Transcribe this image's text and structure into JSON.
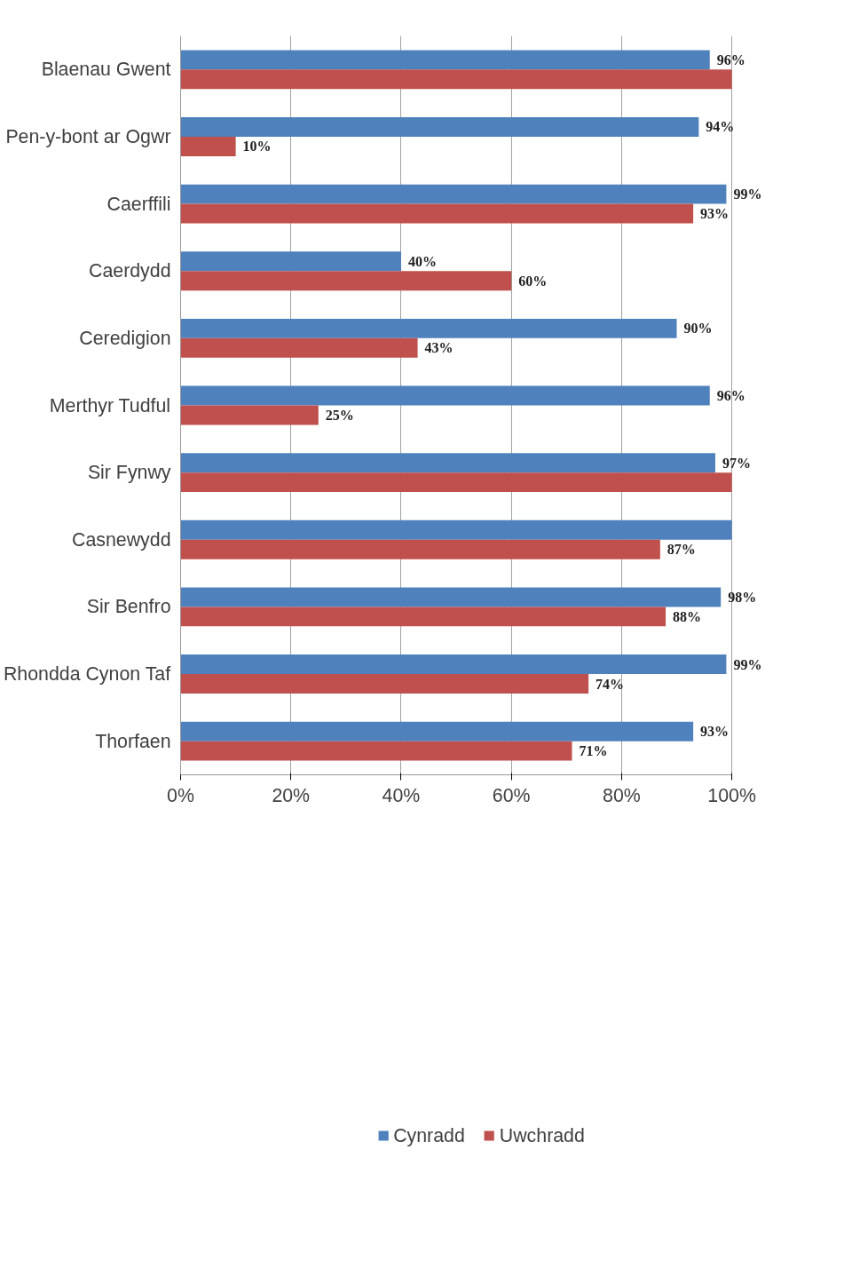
{
  "chart_data": {
    "type": "bar",
    "orientation": "horizontal",
    "categories": [
      "Blaenau Gwent",
      "Pen-y-bont ar Ogwr",
      "Caerffili",
      "Caerdydd",
      "Ceredigion",
      "Merthyr Tudful",
      "Sir Fynwy",
      "Casnewydd",
      "Sir Benfro",
      "Rhondda Cynon Taf",
      "Thorfaen"
    ],
    "series": [
      {
        "name": "Cynradd",
        "color": "#4f81bd",
        "values": [
          96,
          94,
          99,
          40,
          90,
          96,
          97,
          100,
          98,
          99,
          93
        ],
        "value_labels": [
          "96%",
          "94%",
          "99%",
          "40%",
          "90%",
          "96%",
          "97%",
          null,
          "98%",
          "99%",
          "93%"
        ]
      },
      {
        "name": "Uwchradd",
        "color": "#c0504d",
        "values": [
          100,
          10,
          93,
          60,
          43,
          25,
          100,
          87,
          88,
          74,
          71
        ],
        "value_labels": [
          null,
          "10%",
          "93%",
          "60%",
          "43%",
          "25%",
          null,
          "87%",
          "88%",
          "74%",
          "71%"
        ]
      }
    ],
    "xlim": [
      0,
      100
    ],
    "xticks": [
      {
        "value": 0,
        "label": "0%"
      },
      {
        "value": 20,
        "label": "20%"
      },
      {
        "value": 40,
        "label": "40%"
      },
      {
        "value": 60,
        "label": "60%"
      },
      {
        "value": 80,
        "label": "80%"
      },
      {
        "value": 100,
        "label": "100%"
      }
    ],
    "grid": "x",
    "legend": "bottom"
  }
}
